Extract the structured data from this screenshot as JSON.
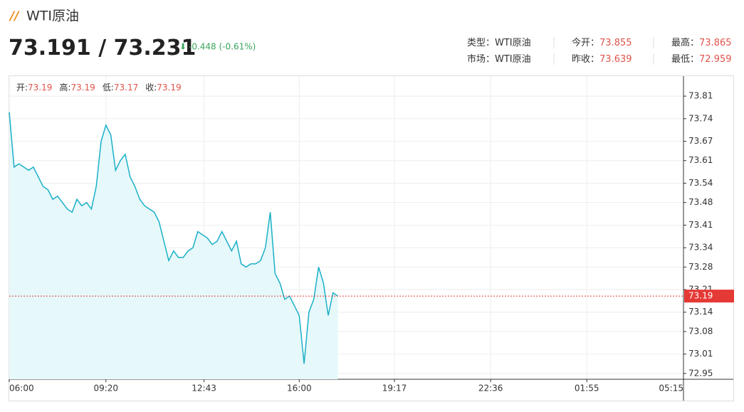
{
  "header": {
    "title": "WTI原油",
    "bid": 73.191,
    "ask": 73.231,
    "change": "-0.448 (-0.61%)",
    "info": [
      {
        "label": "类型：",
        "value": "WTI原油"
      },
      {
        "label": "今开：",
        "value": 73.855
      },
      {
        "label": "最高：",
        "value": 73.865
      },
      {
        "label": "市场：",
        "value": "WTI原油"
      },
      {
        "label": "昨收：",
        "value": 73.639
      },
      {
        "label": "最低：",
        "value": 72.959
      }
    ]
  },
  "chart_data": {
    "type": "line",
    "color": "#1ab0c8",
    "ohlc": [
      {
        "label": "开:",
        "value": 73.19
      },
      {
        "label": "高:",
        "value": 73.19
      },
      {
        "label": "低:",
        "value": 73.17
      },
      {
        "label": "收:",
        "value": 73.19
      }
    ],
    "last_price": 73.19,
    "x": [
      "06:00",
      "06:10",
      "06:20",
      "06:30",
      "06:40",
      "06:50",
      "07:00",
      "07:10",
      "07:20",
      "07:30",
      "07:40",
      "07:50",
      "08:00",
      "08:10",
      "08:20",
      "08:30",
      "08:40",
      "08:50",
      "09:00",
      "09:10",
      "09:20",
      "09:30",
      "09:40",
      "09:50",
      "10:00",
      "10:10",
      "10:20",
      "10:30",
      "10:40",
      "10:50",
      "11:00",
      "11:10",
      "11:20",
      "11:30",
      "11:40",
      "11:50",
      "12:00",
      "12:10",
      "12:20",
      "12:30",
      "12:40",
      "12:50",
      "13:00",
      "13:10",
      "13:20",
      "13:30",
      "13:40",
      "13:50",
      "14:00",
      "14:10",
      "14:20",
      "14:30",
      "14:40",
      "14:50",
      "15:00",
      "15:10",
      "15:20",
      "15:30",
      "15:40",
      "15:50",
      "16:00",
      "16:10",
      "16:20",
      "16:30",
      "16:40",
      "16:50",
      "17:00",
      "17:10",
      "17:20"
    ],
    "values": [
      73.76,
      73.59,
      73.6,
      73.59,
      73.58,
      73.59,
      73.56,
      73.53,
      73.52,
      73.49,
      73.5,
      73.48,
      73.46,
      73.45,
      73.49,
      73.47,
      73.48,
      73.46,
      73.53,
      73.67,
      73.72,
      73.69,
      73.58,
      73.61,
      73.63,
      73.56,
      73.53,
      73.49,
      73.47,
      73.46,
      73.45,
      73.42,
      73.36,
      73.3,
      73.33,
      73.31,
      73.31,
      73.33,
      73.34,
      73.39,
      73.38,
      73.37,
      73.35,
      73.36,
      73.39,
      73.36,
      73.33,
      73.36,
      73.29,
      73.28,
      73.29,
      73.29,
      73.3,
      73.34,
      73.45,
      73.26,
      73.23,
      73.18,
      73.19,
      73.16,
      73.13,
      72.98,
      73.14,
      73.18,
      73.28,
      73.23,
      73.13,
      73.2,
      73.19
    ],
    "xlim": [
      "06:00",
      "05:15"
    ],
    "xticks": [
      "06:00",
      "09:20",
      "12:43",
      "16:00",
      "19:17",
      "22:36",
      "01:55",
      "05:15"
    ],
    "ylim": [
      72.932,
      73.872
    ],
    "yticks": [
      73.81,
      73.74,
      73.67,
      73.61,
      73.54,
      73.48,
      73.41,
      73.34,
      73.28,
      73.21,
      73.14,
      73.08,
      73.01,
      72.95
    ],
    "grid": true
  }
}
